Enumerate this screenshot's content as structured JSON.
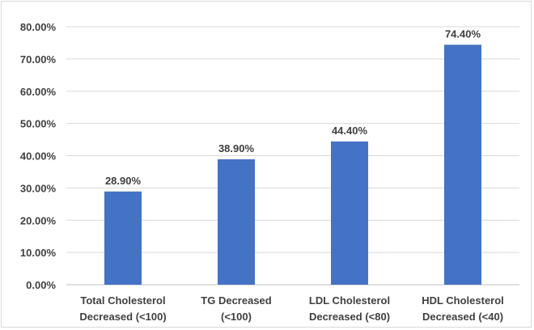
{
  "chart_data": {
    "type": "bar",
    "title": "",
    "xlabel": "",
    "ylabel": "",
    "ylim": [
      0,
      80
    ],
    "y_ticks": [
      "0.00%",
      "10.00%",
      "20.00%",
      "30.00%",
      "40.00%",
      "50.00%",
      "60.00%",
      "70.00%",
      "80.00%"
    ],
    "grid": true,
    "legend": "none",
    "bar_color": "#4472c4",
    "categories": [
      [
        "Total Cholesterol",
        "Decreased (<100)"
      ],
      [
        "TG Decreased",
        "(<100)"
      ],
      [
        "LDL Cholesterol",
        "Decreased (<80)"
      ],
      [
        "HDL Cholesterol",
        "Decreased (<40)"
      ]
    ],
    "values": [
      28.9,
      38.9,
      44.4,
      74.4
    ],
    "value_labels": [
      "28.90%",
      "38.90%",
      "44.40%",
      "74.40%"
    ]
  }
}
